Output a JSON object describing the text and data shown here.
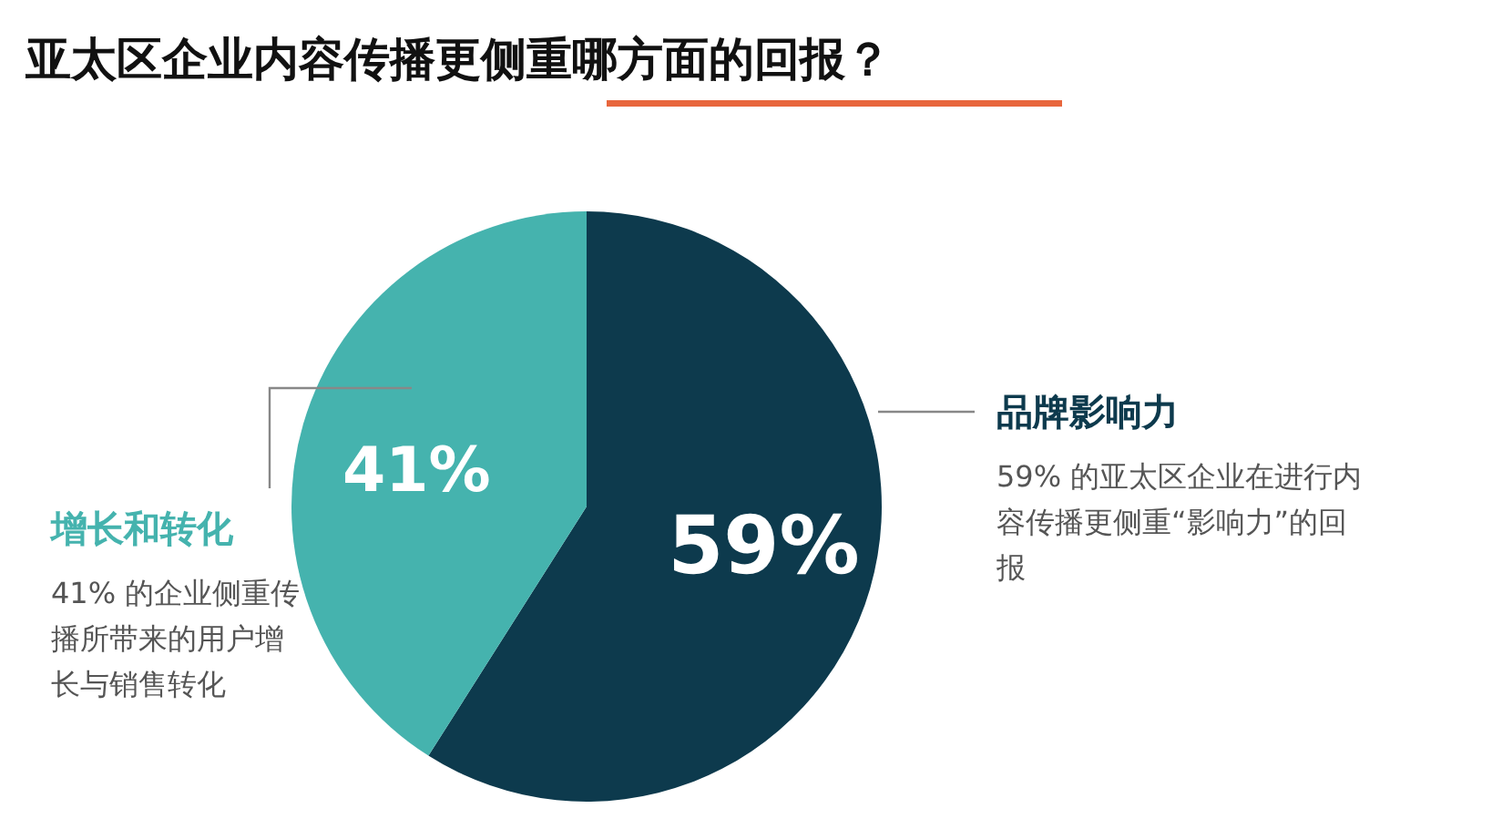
{
  "chart_data": {
    "type": "pie",
    "title": "亚太区企业内容传播更侧重哪方面的回报？",
    "categories": [
      "品牌影响力",
      "增长和转化"
    ],
    "values": [
      59,
      41
    ],
    "colors": [
      "#0d3a4d",
      "#45b3ae"
    ],
    "value_labels": [
      "59%",
      "41%"
    ],
    "annotations": [
      "59% 的亚太区企业在进行内容传播更侧重“影响力”的回报",
      "41% 的企业侧重传播所带来的用户增长与销售转化"
    ],
    "legend": false
  }
}
